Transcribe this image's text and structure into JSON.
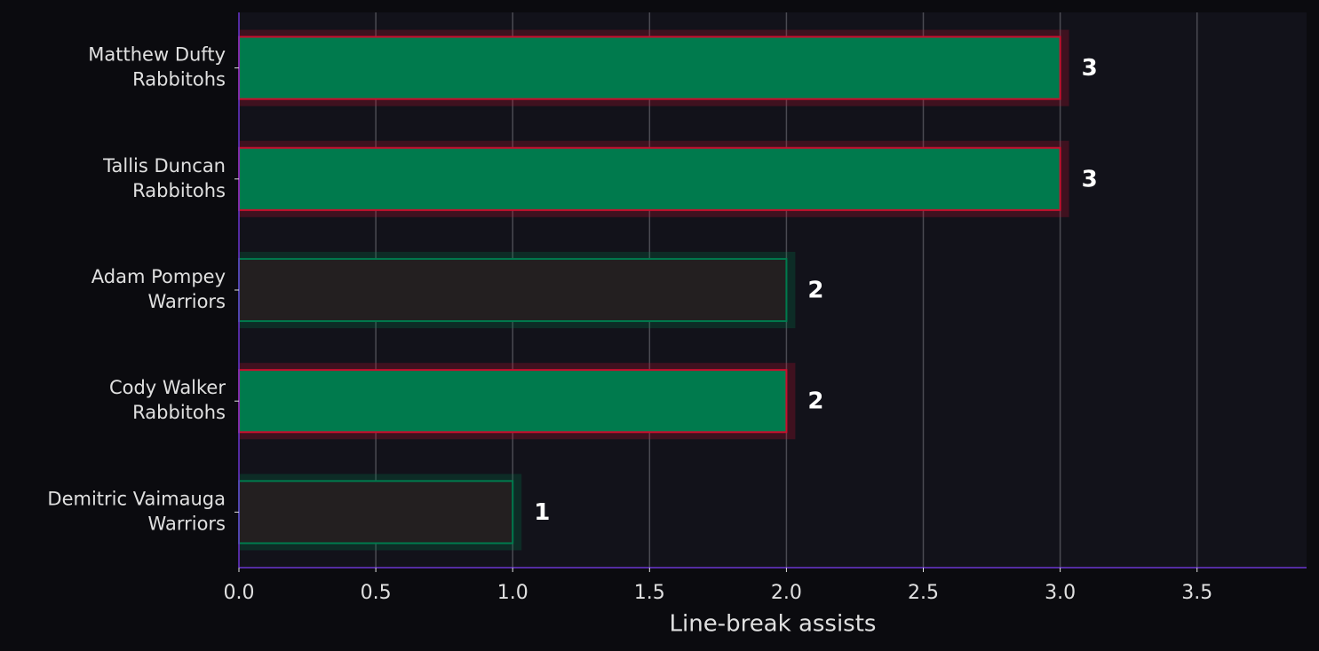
{
  "chart_data": {
    "type": "barh",
    "xlabel": "Line-break assists",
    "categories": [
      [
        "Matthew Dufty",
        "Rabbitohs"
      ],
      [
        "Tallis Duncan",
        "Rabbitohs"
      ],
      [
        "Adam Pompey",
        "Warriors"
      ],
      [
        "Cody Walker",
        "Rabbitohs"
      ],
      [
        "Demitric Vaimauga",
        "Warriors"
      ]
    ],
    "values": [
      3,
      3,
      2,
      2,
      1
    ],
    "colors": [
      "#007a4d",
      "#007a4d",
      "#231f20",
      "#007a4d",
      "#231f20"
    ],
    "edgecolors": [
      "#c8102e",
      "#c8102e",
      "#007a4d",
      "#c8102e",
      "#007a4d"
    ],
    "xlim": [
      0,
      3.9
    ],
    "xticks": [
      {
        "value": 0,
        "label": "0.0"
      },
      0.5,
      {
        "value": 1,
        "label": "1.0"
      },
      1.5,
      {
        "value": 2,
        "label": "2.0"
      },
      2.5,
      {
        "value": 3,
        "label": "3.0"
      },
      3.5
    ],
    "grid": true
  }
}
